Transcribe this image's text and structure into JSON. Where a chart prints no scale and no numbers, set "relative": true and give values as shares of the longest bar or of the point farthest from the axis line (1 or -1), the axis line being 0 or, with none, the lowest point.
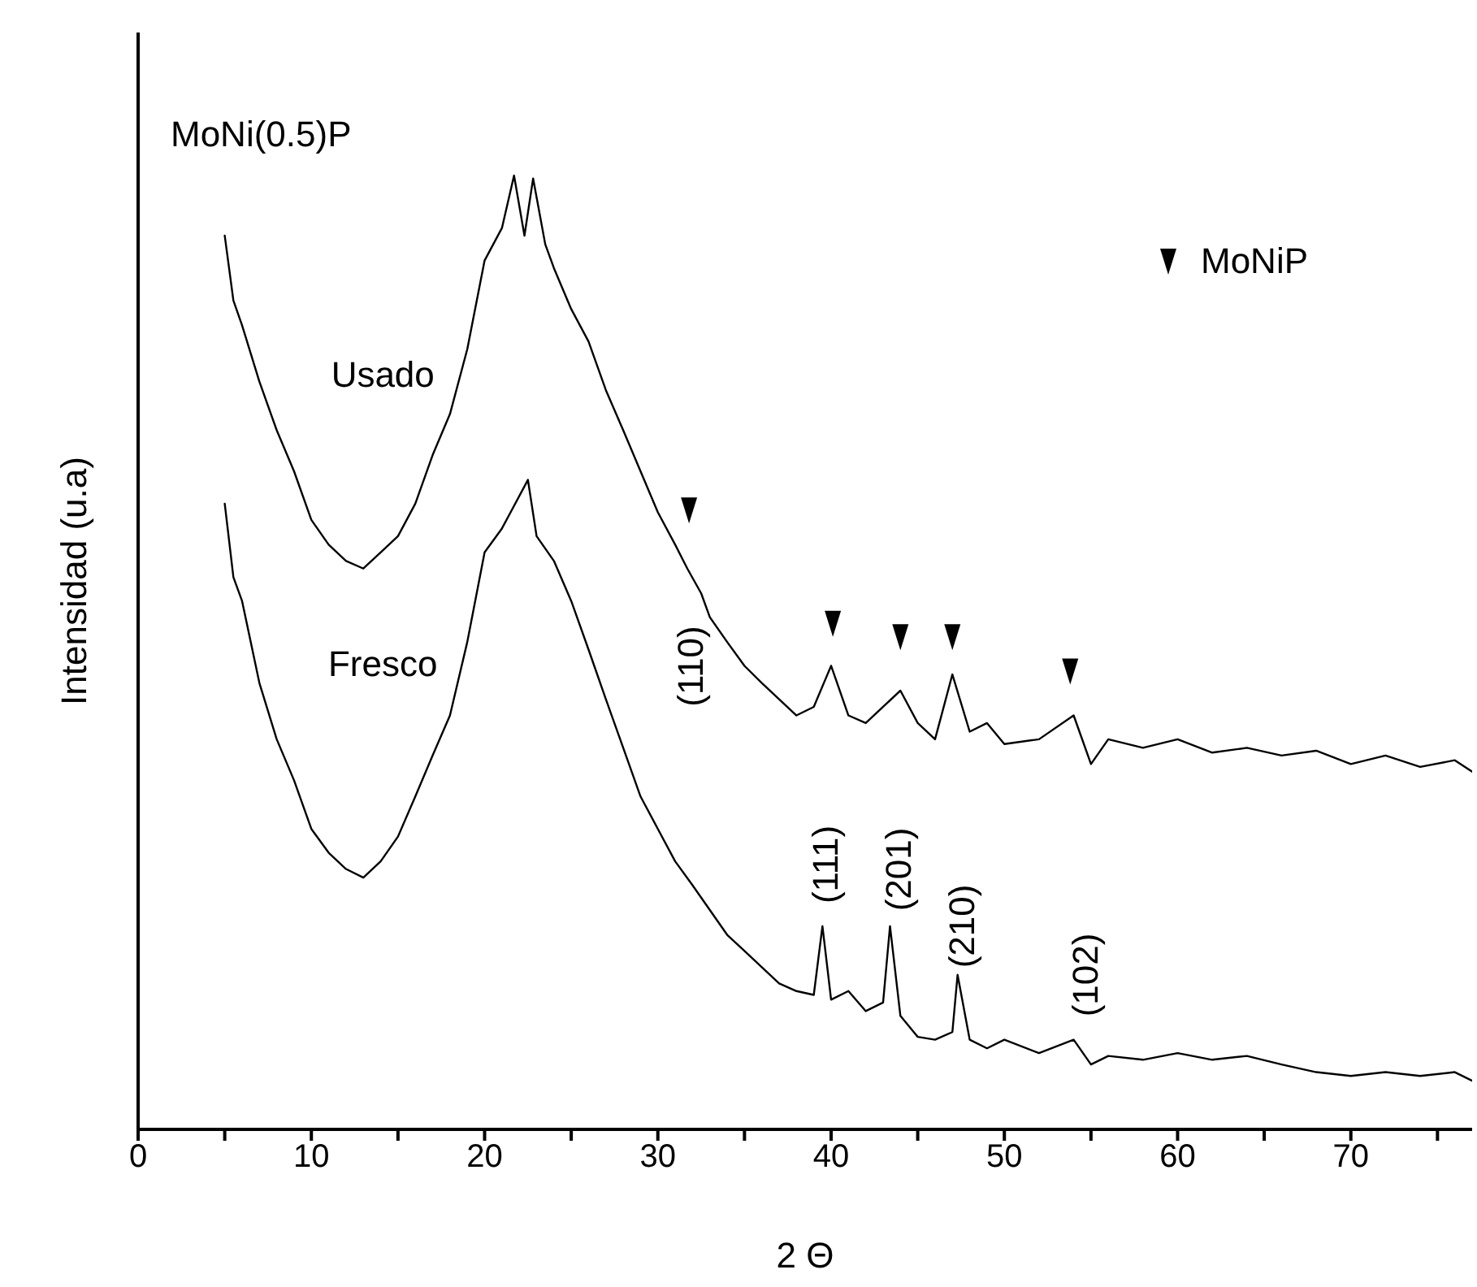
{
  "chart_data": {
    "type": "line",
    "relative": true,
    "title": "MoNi(0.5)P",
    "xlabel": "2 Θ",
    "ylabel": "Intensidad (u.a)",
    "xlim": [
      0,
      77
    ],
    "xticks": [
      0,
      {
        "value": 5,
        "label": null
      },
      10,
      {
        "value": 15,
        "label": null
      },
      20,
      {
        "value": 25,
        "label": null
      },
      30,
      {
        "value": 35,
        "label": null
      },
      40,
      {
        "value": 45,
        "label": null
      },
      50,
      {
        "value": 55,
        "label": null
      },
      60,
      {
        "value": 65,
        "label": null
      },
      70,
      {
        "value": 75,
        "label": null
      }
    ],
    "legend": "top right",
    "series": [
      {
        "name": "Usado",
        "color": "#000000",
        "x": [
          5,
          5.5,
          6,
          7,
          8,
          9,
          10,
          11,
          12,
          13,
          14,
          15,
          16,
          17,
          18,
          19,
          20,
          21,
          21.7,
          22.3,
          22.8,
          23.5,
          24,
          25,
          26,
          27,
          28,
          29,
          30,
          31,
          31.7,
          32.5,
          33,
          34,
          35,
          36,
          37,
          38,
          39,
          40,
          41,
          42,
          43,
          44,
          45,
          46,
          47,
          48,
          49,
          50,
          52,
          54,
          55,
          56,
          58,
          60,
          62,
          64,
          66,
          68,
          70,
          72,
          74,
          76,
          77
        ],
        "values": [
          0.937,
          0.869,
          0.843,
          0.784,
          0.733,
          0.69,
          0.639,
          0.613,
          0.596,
          0.588,
          0.605,
          0.622,
          0.656,
          0.707,
          0.75,
          0.818,
          0.911,
          0.945,
          1.0,
          0.937,
          0.997,
          0.928,
          0.903,
          0.86,
          0.826,
          0.775,
          0.733,
          0.69,
          0.647,
          0.613,
          0.588,
          0.562,
          0.537,
          0.511,
          0.486,
          0.468,
          0.451,
          0.434,
          0.443,
          0.486,
          0.434,
          0.426,
          0.443,
          0.46,
          0.426,
          0.409,
          0.477,
          0.417,
          0.426,
          0.404,
          0.409,
          0.434,
          0.383,
          0.409,
          0.4,
          0.409,
          0.395,
          0.4,
          0.392,
          0.397,
          0.383,
          0.392,
          0.38,
          0.387,
          0.375
        ]
      },
      {
        "name": "Fresco",
        "color": "#000000",
        "x": [
          5,
          5.5,
          6,
          7,
          8,
          9,
          10,
          11,
          12,
          13,
          14,
          15,
          16,
          17,
          18,
          19,
          20,
          21,
          21.5,
          22.5,
          23,
          24,
          25,
          26,
          27,
          28,
          29,
          30,
          31,
          32,
          33,
          34,
          35,
          36,
          37,
          38,
          39,
          39.5,
          40,
          41,
          42,
          43,
          43.4,
          44,
          45,
          46,
          47,
          47.3,
          48,
          49,
          50,
          52,
          54,
          55,
          56,
          58,
          60,
          62,
          64,
          66,
          68,
          70,
          72,
          74,
          76,
          77
        ],
        "values": [
          0.656,
          0.579,
          0.554,
          0.468,
          0.409,
          0.366,
          0.315,
          0.29,
          0.273,
          0.264,
          0.281,
          0.307,
          0.349,
          0.392,
          0.434,
          0.511,
          0.605,
          0.63,
          0.647,
          0.681,
          0.622,
          0.596,
          0.554,
          0.503,
          0.451,
          0.4,
          0.349,
          0.315,
          0.281,
          0.256,
          0.23,
          0.204,
          0.187,
          0.17,
          0.153,
          0.145,
          0.141,
          0.213,
          0.136,
          0.145,
          0.124,
          0.133,
          0.213,
          0.119,
          0.097,
          0.094,
          0.102,
          0.162,
          0.094,
          0.085,
          0.094,
          0.08,
          0.094,
          0.068,
          0.077,
          0.073,
          0.08,
          0.073,
          0.077,
          0.068,
          0.06,
          0.056,
          0.06,
          0.056,
          0.06,
          0.051
        ]
      },
      {
        "name": "MoNiP",
        "type": "scatter",
        "marker": "triangle",
        "color": "#000000",
        "x": [
          31.8,
          40.1,
          44,
          47,
          53.8
        ],
        "values": [
          0.649,
          0.53,
          0.516,
          0.516,
          0.48
        ]
      }
    ],
    "annotations": [
      "(110)",
      "(111)",
      "(201)",
      "(210)",
      "(102)"
    ]
  }
}
